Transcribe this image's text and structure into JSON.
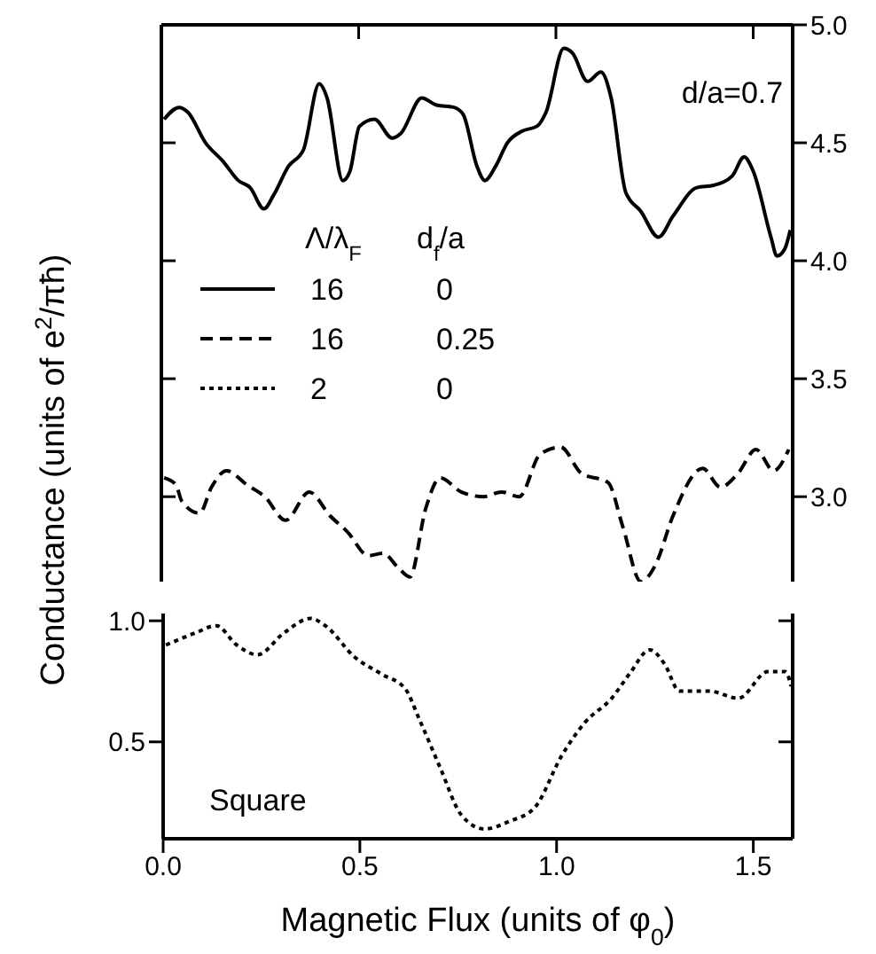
{
  "chart_data": [
    {
      "type": "line",
      "ylabel": "Conductance (units of e$^{2}$/πħ)",
      "legend": "center left",
      "legend_title": "Λ/λ$_{F}$ d$_{f}$/a",
      "annotations": [
        "d/a=0.7"
      ],
      "tick_labels": "y",
      "xlim": [
        0,
        1.6
      ],
      "xticks": [
        0,
        0.5,
        1,
        1.5
      ],
      "ylim": [
        2.64,
        5.0
      ],
      "yticks": [
        {
          "value": 3,
          "label": "3.0"
        },
        3.5,
        {
          "value": 4,
          "label": "4.0"
        },
        4.5,
        {
          "value": 5,
          "label": "5.0"
        }
      ],
      "series": [
        {
          "name": "16 0",
          "color": "#000000",
          "line_style": "solid",
          "x": [
            0.007,
            0.045,
            0.067,
            0.112,
            0.157,
            0.195,
            0.225,
            0.26,
            0.285,
            0.322,
            0.36,
            0.4,
            0.42,
            0.46,
            0.478,
            0.502,
            0.54,
            0.585,
            0.607,
            0.66,
            0.697,
            0.742,
            0.765,
            0.8,
            0.82,
            0.847,
            0.877,
            0.915,
            0.952,
            0.975,
            1.02,
            1.042,
            1.08,
            1.114,
            1.14,
            1.177,
            1.215,
            1.26,
            1.297,
            1.357,
            1.4,
            1.447,
            1.477,
            1.5,
            1.545,
            1.56,
            1.58,
            1.594
          ],
          "values": [
            4.6,
            4.65,
            4.63,
            4.5,
            4.42,
            4.34,
            4.31,
            4.22,
            4.28,
            4.4,
            4.47,
            4.75,
            4.69,
            4.34,
            4.38,
            4.57,
            4.6,
            4.52,
            4.54,
            4.69,
            4.66,
            4.65,
            4.62,
            4.4,
            4.34,
            4.4,
            4.5,
            4.55,
            4.57,
            4.63,
            4.9,
            4.88,
            4.76,
            4.8,
            4.69,
            4.29,
            4.21,
            4.1,
            4.19,
            4.31,
            4.32,
            4.36,
            4.44,
            4.38,
            4.1,
            4.02,
            4.05,
            4.13
          ]
        },
        {
          "name": "16 0.25",
          "color": "#000000",
          "line_style": "dashed",
          "x": [
            0.007,
            0.037,
            0.052,
            0.097,
            0.127,
            0.165,
            0.217,
            0.262,
            0.315,
            0.375,
            0.427,
            0.472,
            0.525,
            0.562,
            0.6,
            0.63,
            0.67,
            0.707,
            0.76,
            0.817,
            0.862,
            0.907,
            0.96,
            1.012,
            1.064,
            1.132,
            1.17,
            1.215,
            1.252,
            1.297,
            1.372,
            1.417,
            1.462,
            1.507,
            1.552,
            1.59
          ],
          "values": [
            3.08,
            3.05,
            2.98,
            2.93,
            3.04,
            3.11,
            3.05,
            3.0,
            2.9,
            3.02,
            2.92,
            2.85,
            2.75,
            2.76,
            2.7,
            2.66,
            2.95,
            3.08,
            3.02,
            3.0,
            3.02,
            3.0,
            3.18,
            3.21,
            3.1,
            3.06,
            2.87,
            2.64,
            2.71,
            2.92,
            3.12,
            3.04,
            3.1,
            3.2,
            3.11,
            3.2
          ]
        }
      ]
    },
    {
      "type": "line",
      "xlabel": "Magnetic Flux (units of φ$_{0}$)",
      "annotations": [
        "Square"
      ],
      "xlim": [
        0,
        1.6
      ],
      "xticks": [
        {
          "value": 0,
          "label": "0.0"
        },
        0.5,
        {
          "value": 1,
          "label": "1.0"
        },
        1.5
      ],
      "ylim": [
        0.1,
        1.03
      ],
      "yticks": [
        0.5,
        {
          "value": 1,
          "label": "1.0"
        }
      ],
      "series": [
        {
          "name": "2 0",
          "color": "#000000",
          "line_style": "dotted",
          "x": [
            0.007,
            0.082,
            0.135,
            0.187,
            0.24,
            0.307,
            0.375,
            0.412,
            0.487,
            0.555,
            0.615,
            0.652,
            0.705,
            0.757,
            0.817,
            0.877,
            0.945,
            1.012,
            1.072,
            1.14,
            1.185,
            1.237,
            1.275,
            1.312,
            1.387,
            1.462,
            1.537,
            1.582,
            1.596
          ],
          "values": [
            0.9,
            0.95,
            0.98,
            0.9,
            0.86,
            0.95,
            1.01,
            0.98,
            0.85,
            0.78,
            0.72,
            0.59,
            0.39,
            0.2,
            0.14,
            0.17,
            0.23,
            0.44,
            0.58,
            0.68,
            0.78,
            0.88,
            0.82,
            0.71,
            0.71,
            0.68,
            0.79,
            0.79,
            0.73
          ]
        }
      ]
    }
  ]
}
